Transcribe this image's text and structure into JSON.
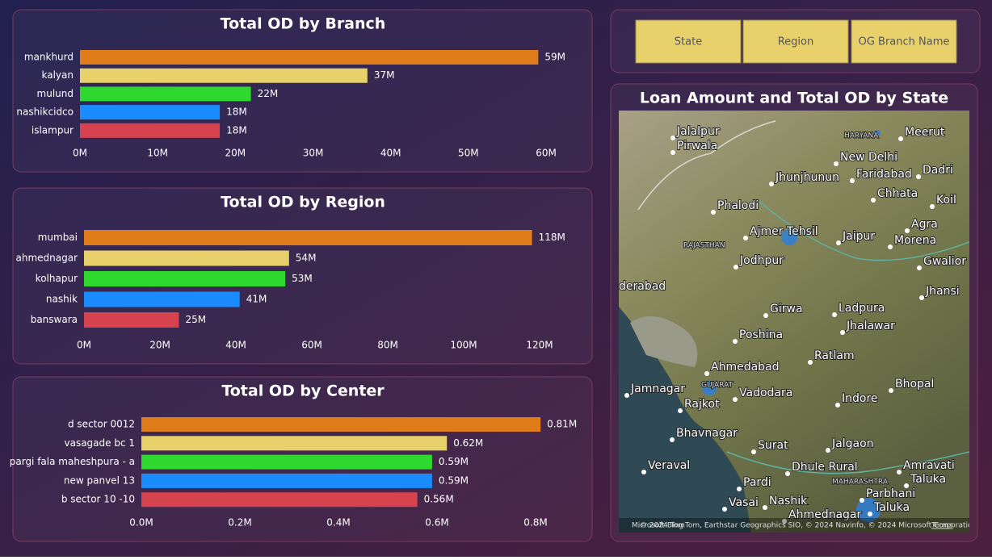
{
  "chart_data": [
    {
      "type": "bar",
      "orientation": "horizontal",
      "title": "Total OD by Branch",
      "categories": [
        "mankhurd",
        "kalyan",
        "mulund",
        "nashikcidco",
        "islampur"
      ],
      "values": [
        59,
        37,
        22,
        18,
        18
      ],
      "value_labels": [
        "59M",
        "37M",
        "22M",
        "18M",
        "18M"
      ],
      "colors": [
        "#e07b1a",
        "#e8d06a",
        "#2ed82e",
        "#1a8cff",
        "#d6434f"
      ],
      "xlim": [
        0,
        60
      ],
      "xticks": [
        {
          "value": 0,
          "label": "0M"
        },
        {
          "value": 10,
          "label": "10M"
        },
        {
          "value": 20,
          "label": "20M"
        },
        {
          "value": 30,
          "label": "30M"
        },
        {
          "value": 40,
          "label": "40M"
        },
        {
          "value": 50,
          "label": "50M"
        },
        {
          "value": 60,
          "label": "60M"
        }
      ]
    },
    {
      "type": "bar",
      "orientation": "horizontal",
      "title": "Total OD by Region",
      "categories": [
        "mumbai",
        "ahmednagar",
        "kolhapur",
        "nashik",
        "banswara"
      ],
      "values": [
        118,
        54,
        53,
        41,
        25
      ],
      "value_labels": [
        "118M",
        "54M",
        "53M",
        "41M",
        "25M"
      ],
      "colors": [
        "#e07b1a",
        "#e8d06a",
        "#2ed82e",
        "#1a8cff",
        "#d6434f"
      ],
      "xlim": [
        0,
        120
      ],
      "xticks": [
        {
          "value": 0,
          "label": "0M"
        },
        {
          "value": 20,
          "label": "20M"
        },
        {
          "value": 40,
          "label": "40M"
        },
        {
          "value": 60,
          "label": "60M"
        },
        {
          "value": 80,
          "label": "80M"
        },
        {
          "value": 100,
          "label": "100M"
        },
        {
          "value": 120,
          "label": "120M"
        }
      ]
    },
    {
      "type": "bar",
      "orientation": "horizontal",
      "title": "Total OD by Center",
      "categories": [
        "d sector 0012",
        "vasagade bc 1",
        "pargi fala maheshpura - a",
        "new panvel 13",
        "b sector 10 -10"
      ],
      "values": [
        0.81,
        0.62,
        0.59,
        0.59,
        0.56
      ],
      "value_labels": [
        "0.81M",
        "0.62M",
        "0.59M",
        "0.59M",
        "0.56M"
      ],
      "colors": [
        "#e07b1a",
        "#e8d06a",
        "#2ed82e",
        "#1a8cff",
        "#d6434f"
      ],
      "xlim": [
        0,
        0.8
      ],
      "xticks": [
        {
          "value": 0,
          "label": "0.0M"
        },
        {
          "value": 0.2,
          "label": "0.2M"
        },
        {
          "value": 0.4,
          "label": "0.4M"
        },
        {
          "value": 0.6,
          "label": "0.6M"
        },
        {
          "value": 0.8,
          "label": "0.8M"
        }
      ]
    }
  ],
  "slicers": [
    "State",
    "Region",
    "OG Branch Name"
  ],
  "map": {
    "title": "Loan Amount and Total OD by State",
    "places": [
      "Jalalpur",
      "Pirwala",
      "HARYANA",
      "Meerut",
      "New Delhi",
      "Faridabad",
      "Dadri",
      "Jhunjhunun",
      "Chhata",
      "Koil",
      "Phalodi",
      "Agra",
      "Ajmer Tehsil",
      "Jaipur",
      "Morena",
      "RAJASTHAN",
      "Jodhpur",
      "Gwalior",
      "derabad",
      "Jhansi",
      "Girwa",
      "Ladpura",
      "Jhalawar",
      "Poshina",
      "Ratlam",
      "Ahmedabad",
      "Bhopal",
      "Jamnagar",
      "GUJARAT",
      "Rajkot",
      "Vadodara",
      "Indore",
      "Bhavnagar",
      "Surat",
      "Jalgaon",
      "Veraval",
      "Dhule Rural",
      "Amravati",
      "Taluka",
      "Pardi",
      "MAHARASHTRA",
      "Vasai",
      "Nashik",
      "Ahmednagar",
      "Parbhani",
      "Taluka"
    ],
    "brand": "Microsoft Bing",
    "attribution": "© 2024 TomTom, Earthstar Geographics SIO, © 2024 Navinfo, © 2024 Microsoft Corporation",
    "terms": "Terms"
  }
}
